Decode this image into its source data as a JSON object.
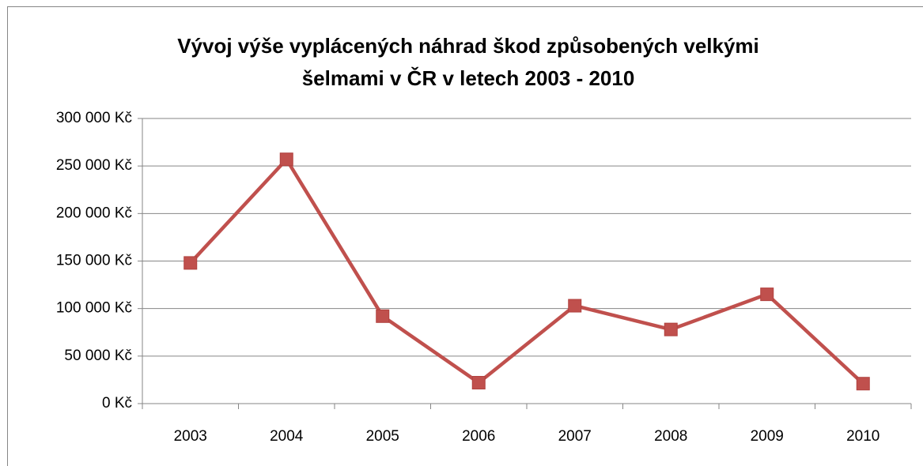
{
  "chart_data": {
    "type": "line",
    "title": [
      "Vývoj výše vyplácených náhrad škod způsobených velkými",
      "šelmami  v ČR v letech 2003 - 2010"
    ],
    "categories": [
      "2003",
      "2004",
      "2005",
      "2006",
      "2007",
      "2008",
      "2009",
      "2010"
    ],
    "series": [
      {
        "color": "#c0504d",
        "values": [
          148000,
          257000,
          92000,
          22000,
          103000,
          78000,
          115000,
          21000
        ]
      }
    ],
    "ylim": [
      0,
      300000
    ],
    "yticks": [
      {
        "value": 0,
        "label": "0 Kč"
      },
      {
        "value": 50000,
        "label": "50 000 Kč"
      },
      {
        "value": 100000,
        "label": "100 000 Kč"
      },
      {
        "value": 150000,
        "label": "150 000 Kč"
      },
      {
        "value": 200000,
        "label": "200 000 Kč"
      },
      {
        "value": 250000,
        "label": "250 000 Kč"
      },
      {
        "value": 300000,
        "label": "300 000 Kč"
      }
    ],
    "grid": true
  }
}
